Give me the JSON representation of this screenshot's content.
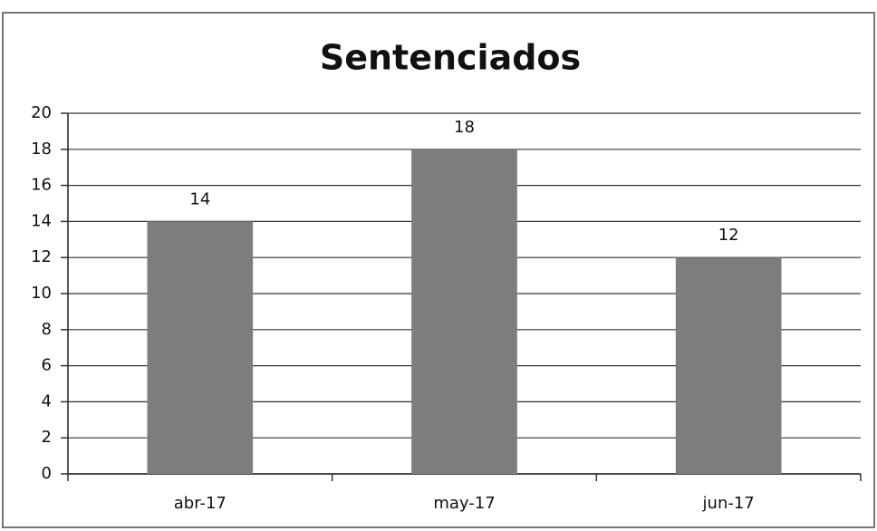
{
  "chart_data": {
    "type": "bar",
    "title": "Sentenciados",
    "categories": [
      "abr-17",
      "may-17",
      "jun-17"
    ],
    "values": [
      14,
      18,
      12
    ],
    "color": "#7d7d7d",
    "ylim": [
      0,
      20
    ],
    "yticks": [
      0,
      2,
      4,
      6,
      8,
      10,
      12,
      14,
      16,
      18,
      20
    ],
    "grid": true
  }
}
